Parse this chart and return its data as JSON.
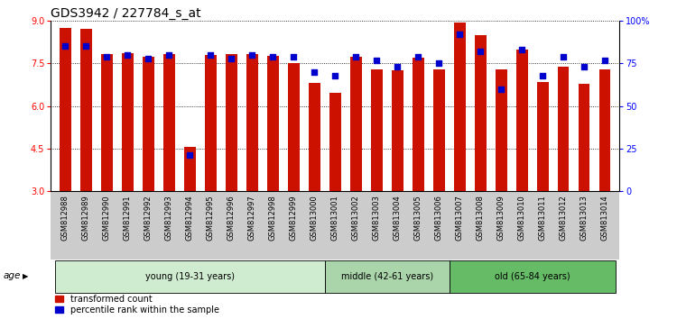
{
  "title": "GDS3942 / 227784_s_at",
  "samples": [
    "GSM812988",
    "GSM812989",
    "GSM812990",
    "GSM812991",
    "GSM812992",
    "GSM812993",
    "GSM812994",
    "GSM812995",
    "GSM812996",
    "GSM812997",
    "GSM812998",
    "GSM812999",
    "GSM813000",
    "GSM813001",
    "GSM813002",
    "GSM813003",
    "GSM813004",
    "GSM813005",
    "GSM813006",
    "GSM813007",
    "GSM813008",
    "GSM813009",
    "GSM813010",
    "GSM813011",
    "GSM813012",
    "GSM813013",
    "GSM813014"
  ],
  "transformed_count": [
    8.75,
    8.7,
    7.82,
    7.85,
    7.72,
    7.82,
    4.55,
    7.78,
    7.82,
    7.82,
    7.75,
    7.52,
    6.8,
    6.45,
    7.72,
    7.28,
    7.25,
    7.7,
    7.3,
    8.95,
    8.5,
    7.3,
    8.0,
    6.85,
    7.38,
    6.78,
    7.3
  ],
  "percentile_rank": [
    85,
    85,
    79,
    80,
    78,
    80,
    21,
    80,
    78,
    80,
    79,
    79,
    70,
    68,
    79,
    77,
    73,
    79,
    75,
    92,
    82,
    60,
    83,
    68,
    79,
    73,
    77
  ],
  "groups": [
    {
      "label": "young (19-31 years)",
      "start": 0,
      "end": 13,
      "color": "#d0ecd0"
    },
    {
      "label": "middle (42-61 years)",
      "start": 13,
      "end": 19,
      "color": "#aad4aa"
    },
    {
      "label": "old (65-84 years)",
      "start": 19,
      "end": 27,
      "color": "#66bb66"
    }
  ],
  "ylim_left": [
    3,
    9
  ],
  "ylim_right": [
    0,
    100
  ],
  "yticks_left": [
    3,
    4.5,
    6,
    7.5,
    9
  ],
  "yticks_right": [
    0,
    25,
    50,
    75,
    100
  ],
  "ytick_labels_right": [
    "0",
    "25",
    "50",
    "75",
    "100%"
  ],
  "bar_color": "#cc1100",
  "dot_color": "#0000cc",
  "bar_width": 0.55,
  "dot_size": 18,
  "title_fontsize": 10,
  "tick_fontsize": 6,
  "label_fontsize": 7.5,
  "grid_color": "#000000",
  "background_color": "#ffffff",
  "tick_area_color": "#cccccc"
}
